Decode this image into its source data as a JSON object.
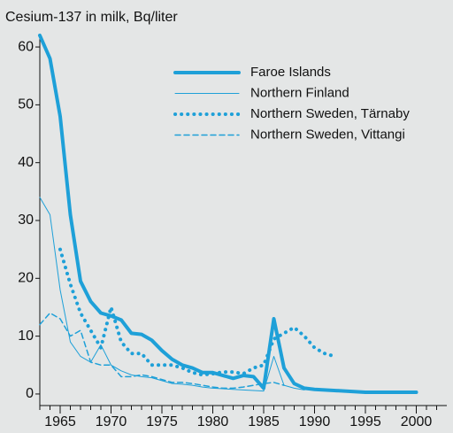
{
  "chart_data": {
    "type": "line",
    "title": "Cesium-137 in milk, Bq/liter",
    "xlim": [
      1963,
      2003
    ],
    "ylim": [
      -2,
      62
    ],
    "xticks": [
      1965,
      1970,
      1975,
      1980,
      1985,
      1990,
      1995,
      2000
    ],
    "xminorticks": [
      1963,
      1964,
      1965,
      1966,
      1967,
      1968,
      1969,
      1970,
      1971,
      1972,
      1973,
      1974,
      1975,
      1976,
      1977,
      1978,
      1979,
      1980,
      1981,
      1982,
      1983,
      1984,
      1985,
      1986,
      1987,
      1988,
      1989,
      1990,
      1991,
      1992,
      1993,
      1994,
      1995,
      1996,
      1997,
      1998,
      1999,
      2000,
      2001,
      2002
    ],
    "yticks": [
      0,
      10,
      20,
      30,
      40,
      50,
      60
    ],
    "series": [
      {
        "name": "Faroe Islands",
        "color": "#1ea0d8",
        "width": 4,
        "dash": "solid",
        "x": [
          1963,
          1964,
          1965,
          1966,
          1967,
          1968,
          1969,
          1970,
          1971,
          1972,
          1973,
          1974,
          1975,
          1976,
          1977,
          1978,
          1979,
          1980,
          1981,
          1982,
          1983,
          1984,
          1985,
          1986,
          1987,
          1988,
          1989,
          1990,
          1995,
          2000
        ],
        "values": [
          62,
          58,
          48,
          31,
          19.5,
          16,
          14,
          13.5,
          12.8,
          10.5,
          10.3,
          9.3,
          7.5,
          6,
          5,
          4.5,
          3.7,
          3.7,
          3.2,
          2.7,
          3.2,
          3,
          1,
          13,
          4.5,
          1.8,
          1,
          0.8,
          0.3,
          0.3
        ]
      },
      {
        "name": "Northern Finland",
        "color": "#1ea0d8",
        "width": 1,
        "dash": "solid",
        "x": [
          1963,
          1964,
          1965,
          1966,
          1967,
          1968,
          1969,
          1970,
          1971,
          1972,
          1973,
          1974,
          1975,
          1976,
          1977,
          1978,
          1979,
          1980,
          1981,
          1982,
          1983,
          1984,
          1985,
          1986,
          1987,
          1988,
          1989
        ],
        "values": [
          34,
          31,
          18,
          9,
          6.5,
          5.5,
          8.5,
          5,
          4,
          3.3,
          3,
          2.8,
          2.3,
          1.8,
          1.7,
          1.5,
          1.2,
          1,
          0.9,
          0.8,
          0.7,
          0.6,
          0.5,
          6.5,
          1.5,
          1,
          0.7
        ]
      },
      {
        "name": "Northern Sweden, Tärnaby",
        "color": "#1ea0d8",
        "width": 4,
        "dash": "dotted",
        "x": [
          1965,
          1966,
          1967,
          1968,
          1969,
          1970,
          1971,
          1972,
          1973,
          1974,
          1975,
          1976,
          1977,
          1978,
          1979,
          1980,
          1981,
          1982,
          1983,
          1984,
          1985,
          1986,
          1987,
          1988,
          1989,
          1990,
          1991,
          1992
        ],
        "values": [
          25,
          19,
          14,
          11,
          8,
          15,
          9,
          7,
          7,
          5,
          5,
          5,
          4.5,
          3.7,
          3.3,
          3.5,
          3.8,
          3.8,
          3.5,
          4.5,
          5,
          9.5,
          10.5,
          11.5,
          10,
          8,
          7,
          6.5
        ]
      },
      {
        "name": "Northern Sweden, Vittangi",
        "color": "#1ea0d8",
        "width": 1.5,
        "dash": "dashed",
        "x": [
          1963,
          1964,
          1965,
          1966,
          1967,
          1968,
          1969,
          1970,
          1971,
          1972,
          1973,
          1974,
          1975,
          1976,
          1977,
          1978,
          1979,
          1980,
          1981,
          1982,
          1983,
          1984,
          1985,
          1986,
          1987
        ],
        "values": [
          12,
          14,
          13,
          10,
          11,
          5.5,
          5,
          5,
          3,
          3,
          3.3,
          3,
          2.5,
          2,
          2,
          1.8,
          1.5,
          1.2,
          1,
          1,
          1.2,
          1.5,
          1.8,
          2,
          1.5
        ]
      }
    ]
  }
}
